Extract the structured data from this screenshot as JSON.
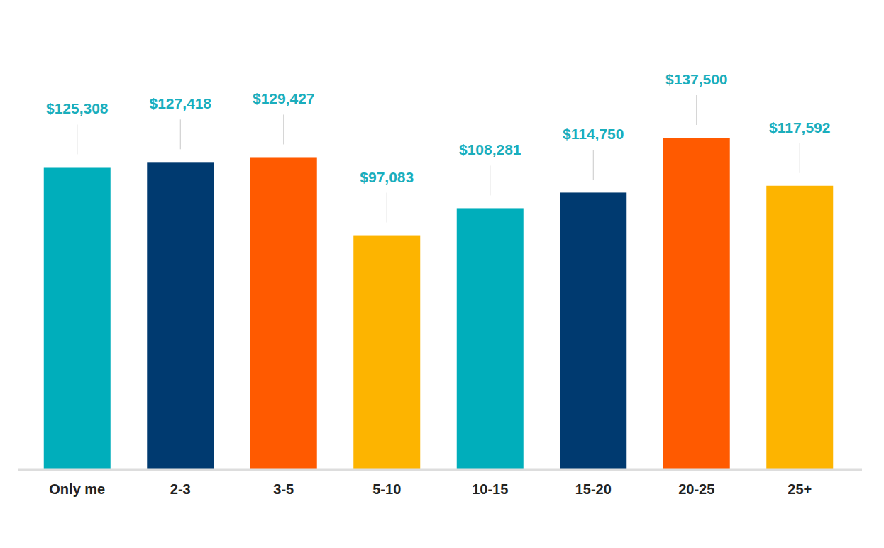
{
  "chart_data": {
    "type": "bar",
    "categories": [
      "Only me",
      "2-3",
      "3-5",
      "5-10",
      "10-15",
      "15-20",
      "20-25",
      "25+"
    ],
    "values": [
      125308,
      127418,
      129427,
      97083,
      108281,
      114750,
      137500,
      117592
    ],
    "value_labels": [
      "$125,308",
      "$127,418",
      "$129,427",
      "$97,083",
      "$108,281",
      "$114,750",
      "$137,500",
      "$117,592"
    ],
    "colors": [
      "#00aebb",
      "#003a70",
      "#ff5a00",
      "#fdb400",
      "#00aebb",
      "#003a70",
      "#ff5a00",
      "#fdb400"
    ],
    "ylim": [
      0,
      137500
    ],
    "data_labels": true,
    "tick_labels": "x"
  }
}
